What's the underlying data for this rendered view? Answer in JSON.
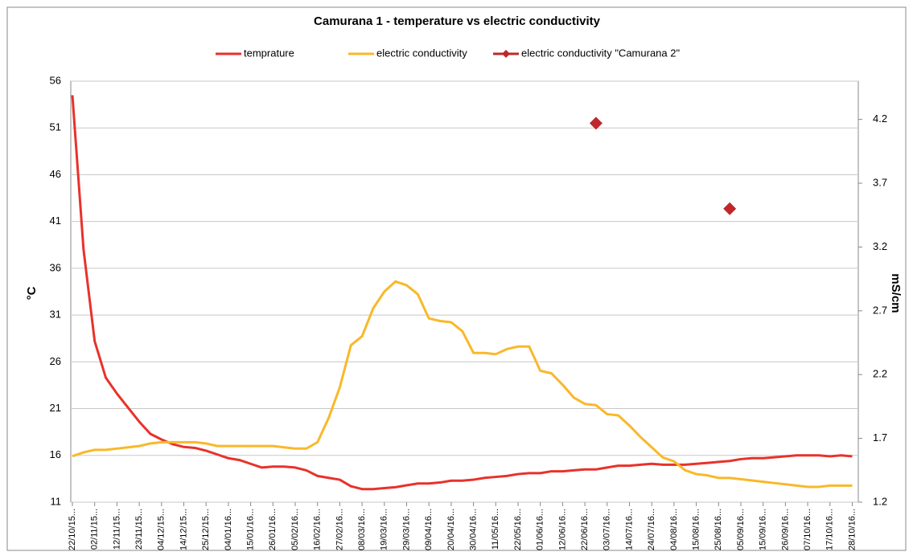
{
  "chart_data": {
    "type": "line",
    "title": "Camurana 1 - temperature vs electric conductivity",
    "ylabel": "°C",
    "y2label": "mS/cm",
    "categories": [
      "22/10/15...",
      null,
      "02/11/15...",
      null,
      "12/11/15...",
      null,
      "23/11/15...",
      null,
      "04/12/15...",
      null,
      "14/12/15...",
      null,
      "25/12/15...",
      null,
      "04/01/16...",
      null,
      "15/01/16...",
      null,
      "26/01/16...",
      null,
      "05/02/16...",
      null,
      "16/02/16...",
      null,
      "27/02/16...",
      null,
      "08/03/16...",
      null,
      "19/03/16...",
      null,
      "29/03/16...",
      null,
      "09/04/16...",
      null,
      "20/04/16...",
      null,
      "30/04/16...",
      null,
      "11/05/16...",
      null,
      "22/05/16...",
      null,
      "01/06/16...",
      null,
      "12/06/16...",
      null,
      "22/06/16...",
      null,
      "03/07/16...",
      null,
      "14/07/16...",
      null,
      "24/07/16...",
      null,
      "04/08/16...",
      null,
      "15/08/16...",
      null,
      "25/08/16...",
      null,
      "05/09/16...",
      null,
      "15/09/16...",
      null,
      "26/09/16...",
      null,
      "07/10/16...",
      null,
      "17/10/16...",
      null,
      "28/10/16..."
    ],
    "series": [
      {
        "name": "temprature",
        "color": "#e8322a",
        "style": "line",
        "values": [
          54.5,
          38,
          28.2,
          24.3,
          22.6,
          21.1,
          19.6,
          18.3,
          17.7,
          17.2,
          16.9,
          16.8,
          16.5,
          16.1,
          15.7,
          15.5,
          15.1,
          14.7,
          14.8,
          14.8,
          14.7,
          14.4,
          13.8,
          13.6,
          13.4,
          12.7,
          12.4,
          12.4,
          12.5,
          12.6,
          12.8,
          13.0,
          13.0,
          13.1,
          13.3,
          13.3,
          13.4,
          13.6,
          13.7,
          13.8,
          14.0,
          14.1,
          14.1,
          14.3,
          14.3,
          14.4,
          14.5,
          14.5,
          14.7,
          14.9,
          14.9,
          15.0,
          15.1,
          15.0,
          15.0,
          15.0,
          15.1,
          15.2,
          15.3,
          15.4,
          15.6,
          15.7,
          15.7,
          15.8,
          15.9,
          16.0,
          16.0,
          16.0,
          15.9,
          16.0,
          15.9
        ]
      },
      {
        "name": "electric conductivity",
        "color": "#f9b82a",
        "style": "line",
        "axis": "y2",
        "values": [
          1.56,
          1.59,
          1.61,
          1.61,
          1.62,
          1.63,
          1.64,
          1.66,
          1.67,
          1.67,
          1.67,
          1.67,
          1.66,
          1.64,
          1.64,
          1.64,
          1.64,
          1.64,
          1.64,
          1.63,
          1.62,
          1.62,
          1.67,
          1.86,
          2.1,
          2.43,
          2.5,
          2.72,
          2.85,
          2.93,
          2.9,
          2.83,
          2.64,
          2.62,
          2.61,
          2.54,
          2.37,
          2.37,
          2.36,
          2.4,
          2.42,
          2.42,
          2.23,
          2.21,
          2.12,
          2.02,
          1.97,
          1.96,
          1.89,
          1.88,
          1.8,
          1.71,
          1.63,
          1.55,
          1.52,
          1.45,
          1.42,
          1.41,
          1.39,
          1.39,
          1.38,
          1.37,
          1.36,
          1.35,
          1.34,
          1.33,
          1.32,
          1.32,
          1.33,
          1.33,
          1.33
        ]
      },
      {
        "name": "electric conductivity \"Camurana 2\"",
        "color": "#c0272a",
        "style": "markers",
        "marker": "diamond",
        "axis": "y2",
        "values": [
          null,
          null,
          null,
          null,
          null,
          null,
          null,
          null,
          null,
          null,
          null,
          null,
          null,
          null,
          null,
          null,
          null,
          null,
          null,
          null,
          null,
          null,
          null,
          null,
          null,
          null,
          null,
          null,
          null,
          null,
          null,
          null,
          null,
          null,
          null,
          null,
          null,
          null,
          null,
          null,
          null,
          null,
          null,
          null,
          null,
          null,
          null,
          4.17,
          null,
          null,
          null,
          null,
          null,
          null,
          null,
          null,
          null,
          null,
          null,
          3.5,
          null,
          null,
          null,
          null,
          null,
          null,
          null,
          null,
          null,
          null,
          null
        ]
      }
    ],
    "ylim": [
      11,
      56
    ],
    "yticks": [
      11,
      16,
      21,
      26,
      31,
      36,
      41,
      46,
      51,
      56
    ],
    "y2lim": [
      1.2,
      4.5
    ],
    "y2ticks": [
      1.2,
      1.7,
      2.2,
      2.7,
      3.2,
      3.7,
      4.2
    ],
    "grid": true,
    "legend": "top"
  }
}
